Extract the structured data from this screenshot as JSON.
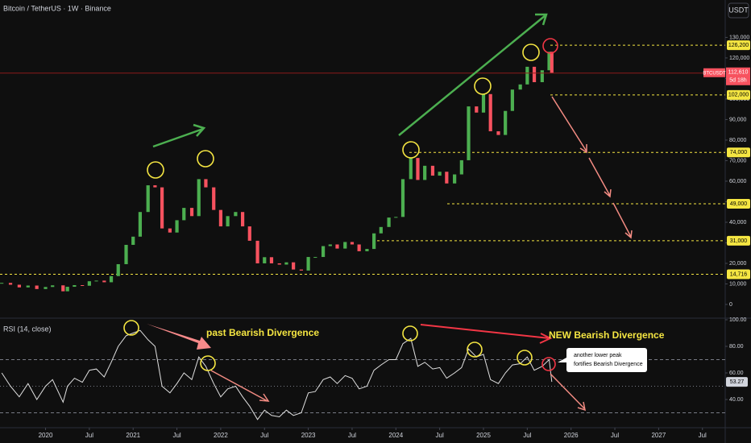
{
  "header": {
    "title": "Bitcoin / TetherUS · 1W · Binance",
    "currency": "USDT"
  },
  "chart_data": [
    {
      "type": "candlestick",
      "name": "BTCUSDT",
      "x": [
        2019.5,
        2019.6,
        2019.7,
        2019.8,
        2019.9,
        2020.0,
        2020.08,
        2020.2,
        2020.25,
        2020.33,
        2020.42,
        2020.5,
        2020.58,
        2020.67,
        2020.75,
        2020.83,
        2020.92,
        2021.0,
        2021.08,
        2021.17,
        2021.25,
        2021.33,
        2021.42,
        2021.5,
        2021.58,
        2021.67,
        2021.75,
        2021.83,
        2021.92,
        2022.0,
        2022.08,
        2022.17,
        2022.25,
        2022.33,
        2022.42,
        2022.5,
        2022.58,
        2022.67,
        2022.75,
        2022.83,
        2022.92,
        2023.0,
        2023.08,
        2023.17,
        2023.25,
        2023.33,
        2023.42,
        2023.5,
        2023.58,
        2023.67,
        2023.75,
        2023.83,
        2023.92,
        2024.0,
        2024.08,
        2024.17,
        2024.25,
        2024.33,
        2024.42,
        2024.5,
        2024.58,
        2024.67,
        2024.75,
        2024.83,
        2024.92,
        2025.0,
        2025.08,
        2025.17,
        2025.25,
        2025.33,
        2025.42,
        2025.5,
        2025.58,
        2025.67,
        2025.75,
        2025.78
      ],
      "values": [
        10500,
        9600,
        8300,
        9200,
        7500,
        8500,
        9300,
        6400,
        8600,
        9400,
        9100,
        11300,
        11600,
        10800,
        13800,
        19600,
        29000,
        33000,
        45000,
        58000,
        57000,
        37000,
        35000,
        41000,
        47000,
        43000,
        61000,
        57000,
        46000,
        38000,
        43000,
        45000,
        38000,
        31000,
        20000,
        23000,
        20000,
        19400,
        20500,
        17000,
        16500,
        23100,
        23100,
        28400,
        29200,
        27200,
        30400,
        29200,
        25900,
        27000,
        34600,
        37700,
        42300,
        42600,
        61000,
        71300,
        60600,
        67500,
        62700,
        64600,
        58900,
        63300,
        70200,
        96400,
        93400,
        102400,
        84300,
        82500,
        94200,
        104600,
        107100,
        115700,
        108200,
        114000,
        123000,
        112610
      ],
      "up_color": "#4caf50",
      "down_color": "#f7525f",
      "last_label": {
        "symbol": "BTCUSDT",
        "price": "112,610",
        "countdown": "5d 18h"
      },
      "xlim": [
        2019.48,
        2027.76
      ],
      "xticks": [
        {
          "value": 2020,
          "label": "2020"
        },
        {
          "value": 2020.5,
          "label": "Jul"
        },
        {
          "value": 2021,
          "label": "2021"
        },
        {
          "value": 2021.5,
          "label": "Jul"
        },
        {
          "value": 2022,
          "label": "2022"
        },
        {
          "value": 2022.5,
          "label": "Jul"
        },
        {
          "value": 2023,
          "label": "2023"
        },
        {
          "value": 2023.5,
          "label": "Jul"
        },
        {
          "value": 2024,
          "label": "2024"
        },
        {
          "value": 2024.5,
          "label": "Jul"
        },
        {
          "value": 2025,
          "label": "2025"
        },
        {
          "value": 2025.5,
          "label": "Jul"
        },
        {
          "value": 2026,
          "label": "2026"
        },
        {
          "value": 2026.5,
          "label": "Jul"
        },
        {
          "value": 2027,
          "label": "2027"
        },
        {
          "value": 2027.5,
          "label": "Jul"
        }
      ],
      "ylim": [
        -5500,
        148200
      ],
      "yticks": [
        0,
        {
          "value": 10000,
          "label": "10,000"
        },
        {
          "value": 20000,
          "label": "20,000"
        },
        {
          "value": 30000,
          "label": "30,000"
        },
        {
          "value": 40000,
          "label": "40,000"
        },
        {
          "value": 50000,
          "label": "50,000"
        },
        {
          "value": 60000,
          "label": "60,000"
        },
        {
          "value": 70000,
          "label": "70,000"
        },
        {
          "value": 80000,
          "label": "80,000"
        },
        {
          "value": 90000,
          "label": "90,000"
        },
        {
          "value": 100000,
          "label": "100,000"
        },
        {
          "value": 110000,
          "label": "110,000"
        },
        {
          "value": 120000,
          "label": "120,000"
        },
        {
          "value": 130000,
          "label": "130,000"
        }
      ],
      "levels": [
        {
          "value": 126200,
          "label": "126,200"
        },
        {
          "value": 102000,
          "label": "102,000"
        },
        {
          "value": 74000,
          "label": "74,000"
        },
        {
          "value": 49000,
          "label": "49,000"
        },
        {
          "value": 31000,
          "label": "31,000"
        },
        {
          "value": 14716,
          "label": "14,716"
        }
      ],
      "level_color": "#f5e642"
    },
    {
      "type": "line",
      "title": "RSI (14, close)",
      "values": [
        60,
        50,
        42,
        52,
        40,
        50,
        55,
        38,
        50,
        56,
        53,
        62,
        63,
        57,
        68,
        80,
        88,
        90,
        92,
        85,
        80,
        50,
        45,
        52,
        60,
        55,
        72,
        65,
        52,
        42,
        48,
        50,
        42,
        35,
        25,
        32,
        28,
        27,
        32,
        28,
        30,
        45,
        46,
        55,
        57,
        52,
        58,
        56,
        48,
        50,
        62,
        66,
        70,
        70,
        82,
        86,
        65,
        68,
        63,
        64,
        56,
        60,
        64,
        78,
        72,
        74,
        55,
        52,
        60,
        66,
        67,
        72,
        62,
        65,
        70,
        53.27
      ],
      "last_label": "53.27",
      "color": "#e0e0e0",
      "ylim": [
        19.4,
        100
      ],
      "yticks": [
        {
          "value": 100,
          "label": "100.00"
        },
        {
          "value": 80,
          "label": "80.00"
        },
        {
          "value": 60,
          "label": "60.00"
        },
        {
          "value": 40,
          "label": "40.00"
        }
      ],
      "levels": [
        70,
        50,
        30
      ]
    }
  ],
  "annotations": {
    "past": "past Bearish Divergence",
    "new": "NEW Bearish Divergence",
    "callout": [
      "another lower peak",
      "fortifies Bearish Divergence"
    ]
  }
}
